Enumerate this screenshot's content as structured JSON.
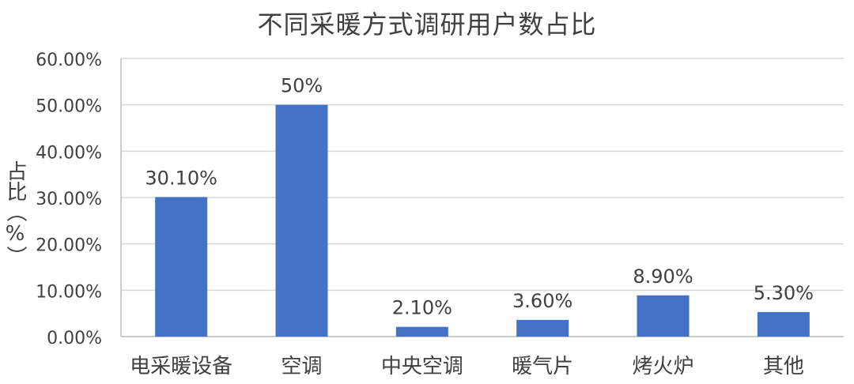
{
  "chart_data": {
    "type": "bar",
    "title": "不同采暖方式调研用户数占比",
    "xlabel": "",
    "ylabel": "占比（%）",
    "categories": [
      "电采暖设备",
      "空调",
      "中央空调",
      "暖气片",
      "烤火炉",
      "其他"
    ],
    "values": [
      30.1,
      50,
      2.1,
      3.6,
      8.9,
      5.3
    ],
    "data_labels": [
      "30.10%",
      "50%",
      "2.10%",
      "3.60%",
      "8.90%",
      "5.30%"
    ],
    "ylim": [
      0,
      60
    ],
    "yticks": [
      0,
      10,
      20,
      30,
      40,
      50,
      60
    ],
    "ytick_labels": [
      "0.00%",
      "10.00%",
      "20.00%",
      "30.00%",
      "40.00%",
      "50.00%",
      "60.00%"
    ],
    "grid": true,
    "legend": "none",
    "bar_color": "#4472C4",
    "grid_color": "#D9D9D9",
    "text_color": "#404040"
  }
}
